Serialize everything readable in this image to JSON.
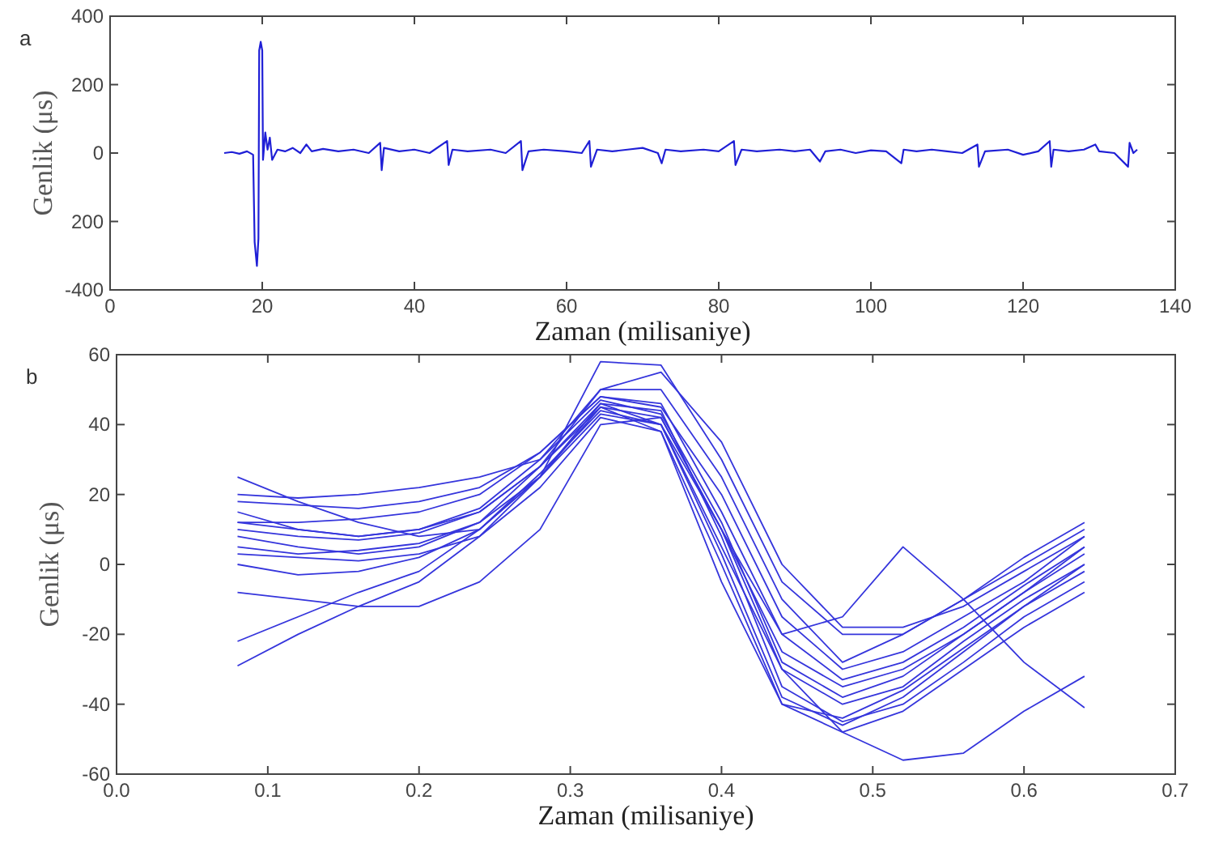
{
  "chart_data": [
    {
      "type": "line",
      "annotations": [
        "a"
      ],
      "xlabel": "Zaman (milisaniye)",
      "ylabel": "Genlik (μs)",
      "xlim": [
        0,
        140
      ],
      "xticks": [
        0,
        20,
        40,
        60,
        80,
        100,
        120,
        140
      ],
      "ylim": [
        -400,
        400
      ],
      "yticks": [
        -400,
        {
          "value": -200,
          "label": "200"
        },
        0,
        200,
        400
      ],
      "grid": false,
      "color": "#1f1fd6",
      "x": [
        15,
        16,
        17,
        18,
        18.8,
        19.0,
        19.3,
        19.5,
        19.6,
        19.8,
        20.0,
        20.1,
        20.4,
        20.7,
        21,
        21.3,
        22,
        23,
        24,
        25,
        25.8,
        26.5,
        28,
        30,
        32,
        34,
        35.5,
        35.7,
        36,
        38,
        40,
        42,
        44.3,
        44.5,
        45,
        47,
        50,
        52,
        54,
        54.2,
        55,
        57,
        60,
        62,
        63,
        63.2,
        64,
        66,
        68,
        70,
        72,
        72.5,
        73,
        75,
        78,
        80,
        82,
        82.2,
        83,
        85,
        88,
        90,
        92,
        93.3,
        94,
        96,
        98,
        100,
        102,
        104,
        104.3,
        106,
        108,
        110,
        112,
        114,
        114.2,
        115,
        118,
        120,
        122,
        123.5,
        123.7,
        124,
        126,
        128,
        129.5,
        130,
        132,
        133.8,
        134,
        134.5,
        135
      ],
      "values": [
        0,
        3,
        -2,
        5,
        -5,
        -260,
        -330,
        -250,
        300,
        325,
        300,
        -20,
        60,
        10,
        45,
        -20,
        10,
        5,
        15,
        0,
        25,
        5,
        12,
        5,
        10,
        0,
        30,
        -50,
        15,
        5,
        10,
        0,
        35,
        -35,
        10,
        5,
        10,
        0,
        35,
        -50,
        5,
        10,
        5,
        0,
        35,
        -40,
        10,
        5,
        10,
        15,
        0,
        -30,
        10,
        5,
        10,
        5,
        35,
        -35,
        10,
        5,
        10,
        5,
        10,
        -25,
        5,
        10,
        0,
        8,
        5,
        -30,
        10,
        5,
        10,
        5,
        0,
        25,
        -40,
        5,
        10,
        -5,
        5,
        35,
        -40,
        10,
        5,
        10,
        25,
        5,
        0,
        -40,
        30,
        0,
        10
      ]
    },
    {
      "type": "line",
      "annotations": [
        "b"
      ],
      "xlabel": "Zaman (milisaniye)",
      "ylabel": "Genlik (μs)",
      "xlim": [
        0,
        0.7
      ],
      "xticks": [
        {
          "value": 0,
          "label": "0.0"
        },
        0.1,
        0.2,
        0.3,
        0.4,
        0.5,
        0.6,
        0.7
      ],
      "ylim": [
        -60,
        60
      ],
      "yticks": [
        -60,
        -40,
        -20,
        0,
        20,
        40,
        60
      ],
      "grid": false,
      "x": [
        0.08,
        0.12,
        0.16,
        0.2,
        0.24,
        0.28,
        0.32,
        0.36,
        0.4,
        0.44,
        0.48,
        0.52,
        0.56,
        0.6,
        0.64
      ],
      "series": [
        {
          "color": "#3535dc",
          "values": [
            10,
            8,
            7,
            9,
            15,
            28,
            45,
            42,
            10,
            -25,
            -35,
            -30,
            -20,
            -8,
            3
          ]
        },
        {
          "color": "#3535dc",
          "values": [
            5,
            3,
            4,
            6,
            12,
            25,
            43,
            40,
            5,
            -30,
            -40,
            -35,
            -22,
            -10,
            0
          ]
        },
        {
          "color": "#3535dc",
          "values": [
            18,
            17,
            16,
            18,
            22,
            32,
            48,
            45,
            20,
            -15,
            -30,
            -25,
            -15,
            -5,
            8
          ]
        },
        {
          "color": "#3535dc",
          "values": [
            15,
            10,
            8,
            10,
            16,
            30,
            50,
            50,
            25,
            -10,
            -28,
            -20,
            -10,
            0,
            10
          ]
        },
        {
          "color": "#3535dc",
          "values": [
            0,
            -3,
            -2,
            2,
            10,
            25,
            46,
            44,
            8,
            -35,
            -45,
            -40,
            -28,
            -15,
            -5
          ]
        },
        {
          "color": "#3535dc",
          "values": [
            20,
            19,
            20,
            22,
            25,
            30,
            47,
            43,
            12,
            -28,
            -38,
            -32,
            -20,
            -8,
            5
          ]
        },
        {
          "color": "#3535dc",
          "values": [
            -29,
            -20,
            -12,
            -5,
            8,
            25,
            45,
            38,
            0,
            -40,
            -48,
            -42,
            -30,
            -18,
            -8
          ]
        },
        {
          "color": "#3535dc",
          "values": [
            -22,
            -15,
            -8,
            -2,
            10,
            26,
            44,
            40,
            3,
            -38,
            -46,
            -38,
            -25,
            -12,
            0
          ]
        },
        {
          "color": "#3535dc",
          "values": [
            25,
            18,
            12,
            8,
            10,
            25,
            58,
            57,
            30,
            -5,
            -20,
            -20,
            -10,
            2,
            12
          ]
        },
        {
          "color": "#3535dc",
          "values": [
            -8,
            -10,
            -12,
            -12,
            -5,
            10,
            40,
            42,
            10,
            -30,
            -48,
            -56,
            -54,
            -42,
            -32
          ]
        },
        {
          "color": "#3535dc",
          "values": [
            12,
            10,
            8,
            10,
            15,
            28,
            46,
            40,
            10,
            -20,
            -15,
            5,
            -10,
            -28,
            -41
          ]
        },
        {
          "color": "#3535dc",
          "values": [
            8,
            5,
            3,
            5,
            12,
            28,
            50,
            55,
            35,
            0,
            -18,
            -18,
            -12,
            -2,
            8
          ]
        },
        {
          "color": "#3535dc",
          "values": [
            12,
            12,
            13,
            15,
            20,
            32,
            48,
            46,
            15,
            -20,
            -33,
            -28,
            -18,
            -6,
            5
          ]
        },
        {
          "color": "#3535dc",
          "values": [
            3,
            2,
            1,
            3,
            8,
            22,
            42,
            38,
            -5,
            -40,
            -44,
            -36,
            -24,
            -12,
            -2
          ]
        }
      ]
    }
  ]
}
